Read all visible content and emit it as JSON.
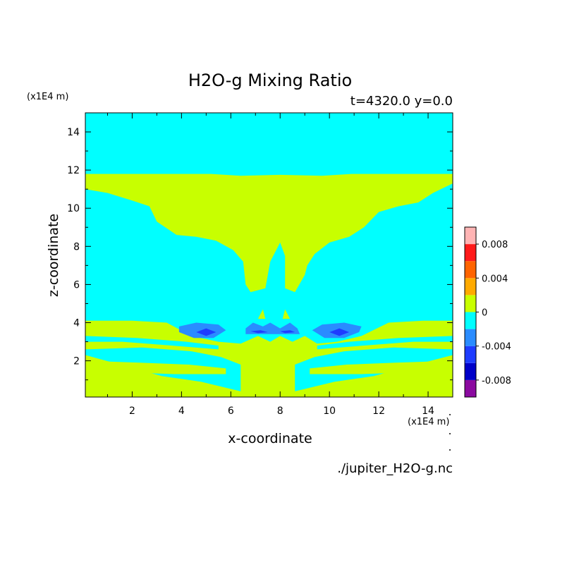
{
  "chart_data": {
    "type": "heatmap",
    "title": "H2O-g Mixing Ratio",
    "subtitle": "t=4320.0 y=0.0",
    "xlabel": "x-coordinate",
    "ylabel": "z-coordinate",
    "x_unit": "(x1E4 m)",
    "y_unit": "(x1E4 m)",
    "xlim": [
      0.1,
      15.0
    ],
    "ylim": [
      0.1,
      15.0
    ],
    "x_ticks": [
      2,
      4,
      6,
      8,
      10,
      12,
      14
    ],
    "y_ticks": [
      2,
      4,
      6,
      8,
      10,
      12,
      14
    ],
    "x_tick_labels": [
      "2",
      "4",
      "6",
      "8",
      "10",
      "12",
      "14"
    ],
    "y_tick_labels": [
      "2",
      "4",
      "6",
      "8",
      "10",
      "12",
      "14"
    ],
    "background_level_color": "#00ffff",
    "colorbar": {
      "levels": [
        -0.01,
        -0.008,
        -0.006,
        -0.004,
        -0.002,
        0.0,
        0.002,
        0.004,
        0.006,
        0.008,
        0.01
      ],
      "colors": [
        "#8b0aa0",
        "#0000c8",
        "#1e3cff",
        "#2a8cff",
        "#00ffff",
        "#c8ff00",
        "#ffaa00",
        "#ff6400",
        "#ff1a1a",
        "#ffb4b4"
      ],
      "tick_values": [
        0.008,
        0.004,
        0,
        -0.004,
        -0.008
      ],
      "tick_labels": [
        "0.008",
        "0.004",
        "0",
        "-0.004",
        "-0.008"
      ]
    },
    "regions": [
      {
        "level": 0.001,
        "polygon": [
          [
            0.1,
            11.8
          ],
          [
            5.2,
            11.8
          ],
          [
            6.4,
            11.7
          ],
          [
            8.0,
            11.75
          ],
          [
            9.7,
            11.7
          ],
          [
            10.9,
            11.8
          ],
          [
            15.0,
            11.8
          ],
          [
            15.0,
            11.3
          ],
          [
            14.2,
            10.8
          ],
          [
            13.6,
            10.3
          ],
          [
            12.8,
            10.1
          ],
          [
            12.0,
            9.8
          ],
          [
            11.4,
            9.0
          ],
          [
            10.8,
            8.5
          ],
          [
            10.0,
            8.2
          ],
          [
            9.4,
            7.6
          ],
          [
            9.1,
            7.0
          ],
          [
            9.0,
            6.5
          ],
          [
            8.6,
            5.6
          ],
          [
            8.2,
            5.8
          ],
          [
            8.2,
            7.5
          ],
          [
            8.0,
            8.2
          ],
          [
            7.6,
            7.2
          ],
          [
            7.4,
            5.8
          ],
          [
            6.8,
            5.6
          ],
          [
            6.6,
            6.0
          ],
          [
            6.5,
            7.2
          ],
          [
            6.1,
            7.8
          ],
          [
            5.4,
            8.3
          ],
          [
            4.6,
            8.5
          ],
          [
            3.8,
            8.6
          ],
          [
            3.0,
            9.3
          ],
          [
            2.7,
            10.1
          ],
          [
            2.0,
            10.4
          ],
          [
            1.0,
            10.8
          ],
          [
            0.1,
            11.0
          ]
        ]
      },
      {
        "level": 0.001,
        "polygon": [
          [
            0.1,
            4.1
          ],
          [
            2.0,
            4.1
          ],
          [
            3.4,
            4.0
          ],
          [
            4.4,
            3.3
          ],
          [
            5.5,
            3.0
          ],
          [
            6.4,
            2.9
          ],
          [
            7.1,
            3.3
          ],
          [
            7.6,
            3.0
          ],
          [
            8.0,
            3.3
          ],
          [
            8.5,
            3.0
          ],
          [
            9.0,
            3.3
          ],
          [
            9.5,
            2.9
          ],
          [
            10.3,
            3.0
          ],
          [
            11.3,
            3.3
          ],
          [
            12.4,
            4.0
          ],
          [
            13.8,
            4.1
          ],
          [
            15.0,
            4.1
          ],
          [
            15.0,
            0.1
          ],
          [
            0.1,
            0.1
          ]
        ]
      },
      {
        "level": -0.001,
        "polygon": [
          [
            0.1,
            2.6
          ],
          [
            2.4,
            2.7
          ],
          [
            4.4,
            2.5
          ],
          [
            5.6,
            2.2
          ],
          [
            6.4,
            1.8
          ],
          [
            6.4,
            0.4
          ],
          [
            4.8,
            0.9
          ],
          [
            3.2,
            1.2
          ],
          [
            1.8,
            1.7
          ],
          [
            0.1,
            2.3
          ]
        ]
      },
      {
        "level": 0.001,
        "polygon": [
          [
            0.1,
            2.0
          ],
          [
            2.3,
            1.9
          ],
          [
            4.3,
            1.8
          ],
          [
            5.8,
            1.6
          ],
          [
            5.8,
            1.3
          ],
          [
            3.7,
            1.3
          ],
          [
            1.6,
            1.4
          ],
          [
            0.1,
            1.5
          ]
        ]
      },
      {
        "level": -0.001,
        "polygon": [
          [
            15.0,
            2.6
          ],
          [
            12.6,
            2.7
          ],
          [
            10.6,
            2.5
          ],
          [
            9.4,
            2.2
          ],
          [
            8.6,
            1.8
          ],
          [
            8.6,
            0.4
          ],
          [
            10.2,
            0.9
          ],
          [
            11.8,
            1.2
          ],
          [
            13.2,
            1.7
          ],
          [
            15.0,
            2.3
          ]
        ]
      },
      {
        "level": 0.001,
        "polygon": [
          [
            15.0,
            2.0
          ],
          [
            12.7,
            1.9
          ],
          [
            10.7,
            1.8
          ],
          [
            9.2,
            1.6
          ],
          [
            9.2,
            1.3
          ],
          [
            11.3,
            1.3
          ],
          [
            13.4,
            1.4
          ],
          [
            15.0,
            1.5
          ]
        ]
      },
      {
        "level": -0.001,
        "polygon": [
          [
            0.1,
            3.3
          ],
          [
            2.2,
            3.2
          ],
          [
            4.2,
            3.0
          ],
          [
            5.5,
            2.8
          ],
          [
            5.5,
            2.6
          ],
          [
            3.6,
            2.8
          ],
          [
            1.6,
            3.0
          ],
          [
            0.1,
            3.0
          ]
        ]
      },
      {
        "level": -0.001,
        "polygon": [
          [
            15.0,
            3.3
          ],
          [
            12.8,
            3.2
          ],
          [
            10.8,
            3.0
          ],
          [
            9.5,
            2.8
          ],
          [
            9.5,
            2.6
          ],
          [
            11.4,
            2.8
          ],
          [
            13.4,
            3.0
          ],
          [
            15.0,
            3.0
          ]
        ]
      },
      {
        "level": -0.003,
        "polygon": [
          [
            3.9,
            3.8
          ],
          [
            4.6,
            4.0
          ],
          [
            5.5,
            3.9
          ],
          [
            5.8,
            3.6
          ],
          [
            5.3,
            3.2
          ],
          [
            4.5,
            3.2
          ],
          [
            3.9,
            3.5
          ]
        ]
      },
      {
        "level": -0.003,
        "polygon": [
          [
            9.3,
            3.6
          ],
          [
            9.7,
            3.9
          ],
          [
            10.6,
            4.0
          ],
          [
            11.3,
            3.8
          ],
          [
            11.2,
            3.5
          ],
          [
            10.6,
            3.2
          ],
          [
            9.8,
            3.2
          ]
        ]
      },
      {
        "level": -0.003,
        "polygon": [
          [
            6.6,
            3.7
          ],
          [
            6.9,
            4.0
          ],
          [
            7.3,
            3.8
          ],
          [
            7.6,
            4.0
          ],
          [
            8.0,
            3.7
          ],
          [
            8.4,
            4.0
          ],
          [
            8.7,
            3.7
          ],
          [
            8.8,
            3.4
          ],
          [
            6.6,
            3.4
          ]
        ]
      },
      {
        "level": -0.005,
        "polygon": [
          [
            4.6,
            3.5
          ],
          [
            5.0,
            3.7
          ],
          [
            5.4,
            3.5
          ],
          [
            5.0,
            3.3
          ]
        ]
      },
      {
        "level": -0.005,
        "polygon": [
          [
            10.0,
            3.5
          ],
          [
            10.4,
            3.7
          ],
          [
            10.8,
            3.5
          ],
          [
            10.4,
            3.3
          ]
        ]
      },
      {
        "level": -0.005,
        "polygon": [
          [
            6.8,
            3.55
          ],
          [
            7.2,
            3.6
          ],
          [
            7.5,
            3.5
          ],
          [
            7.1,
            3.45
          ]
        ]
      },
      {
        "level": -0.005,
        "polygon": [
          [
            8.0,
            3.55
          ],
          [
            8.4,
            3.6
          ],
          [
            8.6,
            3.5
          ],
          [
            8.2,
            3.45
          ]
        ]
      },
      {
        "level": 0.001,
        "polygon": [
          [
            7.1,
            4.2
          ],
          [
            7.3,
            4.7
          ],
          [
            7.4,
            4.2
          ]
        ]
      },
      {
        "level": 0.001,
        "polygon": [
          [
            8.1,
            4.2
          ],
          [
            8.2,
            4.7
          ],
          [
            8.4,
            4.2
          ]
        ]
      }
    ]
  },
  "source": "./jupiter_H2O-g.nc"
}
